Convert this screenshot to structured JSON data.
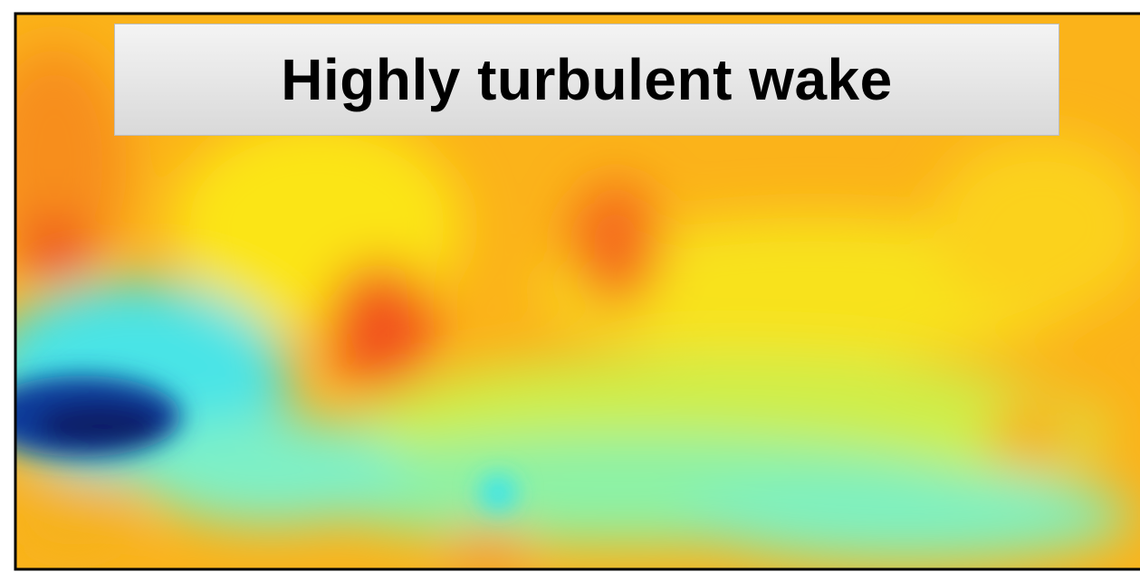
{
  "title": "Highly turbulent wake"
}
